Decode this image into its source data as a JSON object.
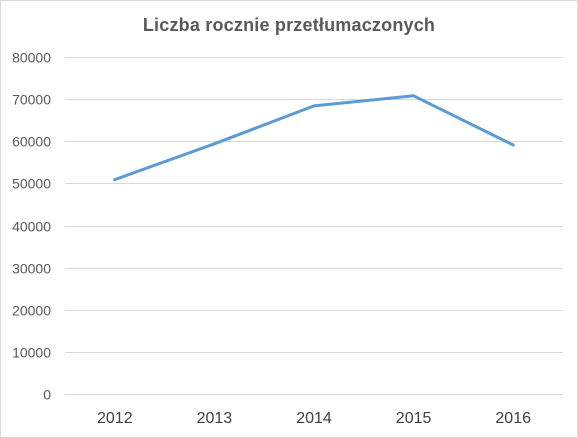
{
  "chart_data": {
    "type": "line",
    "title": "Liczba rocznie  przetłumaczonych",
    "xlabel": "",
    "ylabel": "",
    "categories": [
      "2012",
      "2013",
      "2014",
      "2015",
      "2016"
    ],
    "series": [
      {
        "values": [
          50900,
          59400,
          68400,
          70800,
          59100
        ]
      }
    ],
    "ylim": [
      0,
      80000
    ],
    "yticks": [
      "0",
      "10000",
      "20000",
      "30000",
      "40000",
      "50000",
      "60000",
      "70000",
      "80000"
    ],
    "grid": true,
    "legend": "none",
    "colors": {
      "line": "#5b9bd5",
      "grid": "#d9d9d9",
      "axis_text": "#595959",
      "title": "#595959"
    }
  }
}
